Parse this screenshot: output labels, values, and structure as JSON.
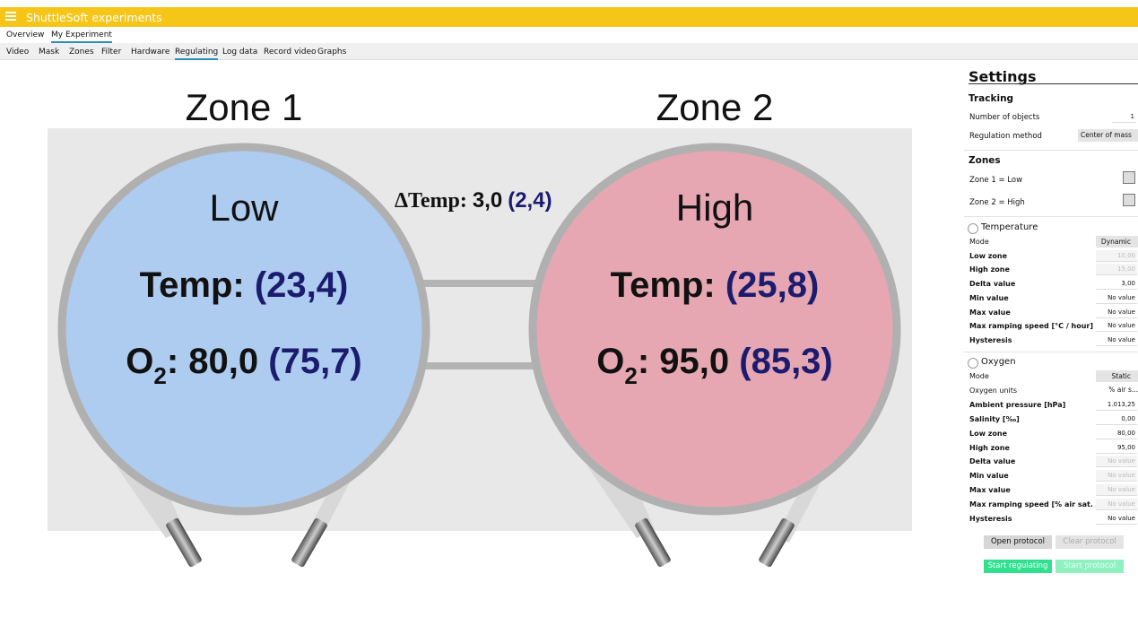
{
  "app": {
    "title": "ShuttleSoft experiments"
  },
  "tabs": [
    "Overview",
    "My Experiment"
  ],
  "subtabs": [
    "Video",
    "Mask",
    "Zones",
    "Filter",
    "Hardware",
    "Regulating",
    "Log data",
    "Record video",
    "Graphs"
  ],
  "zones": [
    {
      "title": "Zone 1",
      "label": "Low",
      "temp_label": "Temp:",
      "temp": "(23,4)",
      "o2": "O",
      "o2_sub": "2",
      "o2_value": ": 80,0",
      "o2_measured": "(75,7)"
    },
    {
      "title": "Zone 2",
      "label": "High",
      "temp_label": "Temp:",
      "temp": "(25,8)",
      "o2": "O",
      "o2_sub": "2",
      "o2_value": ": 95,0",
      "o2_measured": "(85,3)"
    }
  ],
  "delta": {
    "label": "ΔTemp:",
    "value": "3,0",
    "measured": "(2,4)"
  },
  "settings": {
    "title": "Settings",
    "tracking": {
      "title": "Tracking",
      "rows": [
        {
          "label": "Number of objects",
          "value": "1"
        },
        {
          "label": "Regulation method",
          "value": "Center of mass"
        }
      ]
    },
    "zones": {
      "title": "Zones",
      "rows": [
        "Zone 1 = Low",
        "Zone 2 = High"
      ]
    },
    "temperature": {
      "title": "Temperature",
      "rows": [
        {
          "label": "Mode",
          "value": "Dynamic"
        },
        {
          "label": "Low zone",
          "value": "10,00",
          "disabled": true
        },
        {
          "label": "High zone",
          "value": "15,00",
          "disabled": true
        },
        {
          "label": "Delta value",
          "value": "3,00"
        },
        {
          "label": "Min value",
          "value": "No value"
        },
        {
          "label": "Max value",
          "value": "No value"
        },
        {
          "label": "Max ramping speed [°C / hour]",
          "value": "No value"
        },
        {
          "label": "Hysteresis",
          "value": "No value"
        }
      ]
    },
    "oxygen": {
      "title": "Oxygen",
      "rows": [
        {
          "label": "Mode",
          "value": "Static"
        },
        {
          "label": "Oxygen units",
          "value": "% air s..."
        },
        {
          "label": "Ambient pressure [hPa]",
          "value": "1.013,25"
        },
        {
          "label": "Salinity [‰]",
          "value": "0,00"
        },
        {
          "label": "Low zone",
          "value": "80,00"
        },
        {
          "label": "High zone",
          "value": "95,00"
        },
        {
          "label": "Delta value",
          "value": "No value",
          "disabled": true
        },
        {
          "label": "Min value",
          "value": "No value",
          "disabled": true
        },
        {
          "label": "Max value",
          "value": "No value",
          "disabled": true
        },
        {
          "label": "Max ramping speed [% air sat. / hour]",
          "value": "No value",
          "disabled": true
        },
        {
          "label": "Hysteresis",
          "value": "No value"
        }
      ]
    },
    "buttons": [
      {
        "label": "Open protocol"
      },
      {
        "label": "Clear protocol",
        "disabled": true
      },
      {
        "label": "Start regulating"
      },
      {
        "label": "Start protocol",
        "disabled": true
      }
    ]
  }
}
